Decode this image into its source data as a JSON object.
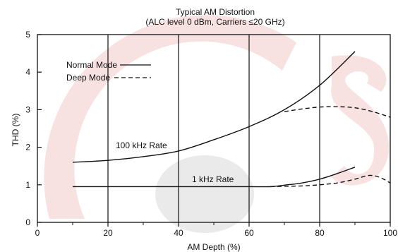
{
  "chart_data": {
    "type": "line",
    "title": "Typical AM Distortion",
    "subtitle": "(ALC level 0 dBm, Carriers ≤20 GHz)",
    "xlabel": "AM Depth (%)",
    "ylabel": "THD (%)",
    "xlim": [
      0,
      100
    ],
    "ylim": [
      0,
      5
    ],
    "x_ticks": [
      "0",
      "20",
      "40",
      "60",
      "80",
      "100"
    ],
    "y_ticks": [
      "0",
      "1",
      "2",
      "3",
      "4",
      "5"
    ],
    "grid": "vertical lines at 20, 40, 60, 80",
    "legend": {
      "placement": "top-left",
      "items": [
        {
          "label": "Normal Mode",
          "style": "solid"
        },
        {
          "label": "Deep Mode",
          "style": "dashed"
        }
      ]
    },
    "annotations": [
      "100 kHz Rate",
      "1 kHz Rate"
    ],
    "series": [
      {
        "rate": "100 kHz",
        "style": "solid",
        "x": [
          10,
          20,
          30,
          40,
          50,
          60,
          70,
          80,
          90
        ],
        "y": [
          1.6,
          1.65,
          1.75,
          1.9,
          2.2,
          2.55,
          3.0,
          3.65,
          4.55
        ]
      },
      {
        "rate": "100 kHz",
        "style": "dashed",
        "x": [
          70,
          75,
          80,
          85,
          90,
          95,
          100
        ],
        "y": [
          2.95,
          3.02,
          3.07,
          3.08,
          3.05,
          2.95,
          2.8
        ]
      },
      {
        "rate": "1 kHz",
        "style": "solid",
        "x": [
          10,
          20,
          30,
          40,
          50,
          60,
          66,
          70,
          75,
          80,
          85,
          90
        ],
        "y": [
          0.95,
          0.95,
          0.95,
          0.95,
          0.95,
          0.95,
          0.95,
          0.99,
          1.05,
          1.15,
          1.3,
          1.47
        ]
      },
      {
        "rate": "1 kHz",
        "style": "dashed",
        "x": [
          66,
          70,
          75,
          80,
          85,
          90,
          94,
          97,
          100
        ],
        "y": [
          0.95,
          0.96,
          0.97,
          1.0,
          1.05,
          1.15,
          1.25,
          1.2,
          1.05
        ]
      }
    ]
  }
}
